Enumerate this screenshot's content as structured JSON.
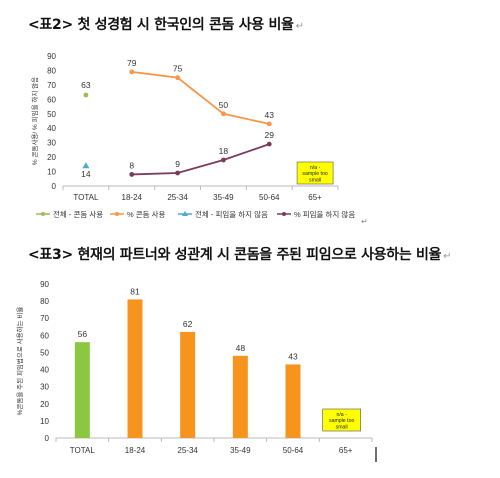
{
  "headings": {
    "table2": "<표2> 첫 성경험 시 한국인의 콘돔 사용 비율",
    "table3": "<표3> 현재의 파트너와 성관계 시 콘돔을 주된 피임으로 사용하는 비율",
    "edit_mark": "↵"
  },
  "chart_data": [
    {
      "type": "line",
      "ylabel": "% 콘돔사용/ % 피임을 하지 않음",
      "ylim": [
        0,
        90
      ],
      "yticks": [
        0,
        10,
        20,
        30,
        40,
        50,
        60,
        70,
        80,
        90
      ],
      "categories": [
        "TOTAL",
        "18-24",
        "25-34",
        "35-49",
        "50-64",
        "65+"
      ],
      "total_points": [
        {
          "name": "전체 - 콘돔 사용",
          "value": 63,
          "color": "#9BBB59",
          "marker": "circle"
        },
        {
          "name": "전체 - 피임을 하지 않음",
          "value": 14,
          "color": "#4BACC6",
          "marker": "triangle"
        }
      ],
      "series": [
        {
          "name": "% 콘돔 사용",
          "color": "#F79646",
          "values": [
            null,
            79,
            75,
            50,
            43,
            null
          ]
        },
        {
          "name": "% 피임을 하지 않음",
          "color": "#7D3B5C",
          "values": [
            null,
            8,
            9,
            18,
            29,
            null
          ]
        }
      ],
      "legend_order": [
        "전체 - 콘돔 사용",
        "% 콘돔 사용",
        "전체 - 피임을 하지 않음",
        "% 피임을 하지 않음"
      ],
      "note": "n/a - sample too small",
      "note_color": "#FFFF00",
      "legend": "bottom"
    },
    {
      "type": "bar",
      "ylabel": "%콘돔을 주된 피임법으로 사용하는 비율",
      "ylim": [
        0,
        90
      ],
      "yticks": [
        0,
        10,
        20,
        30,
        40,
        50,
        60,
        70,
        80,
        90
      ],
      "categories": [
        "TOTAL",
        "18-24",
        "25-34",
        "35-49",
        "50-64",
        "65+"
      ],
      "values": [
        56,
        81,
        62,
        48,
        43,
        null
      ],
      "colors": [
        "#8DC63F",
        "#F7941D",
        "#F7941D",
        "#F7941D",
        "#F7941D",
        null
      ],
      "note": "n/a - sample too small",
      "note_color": "#FFFF00"
    }
  ]
}
